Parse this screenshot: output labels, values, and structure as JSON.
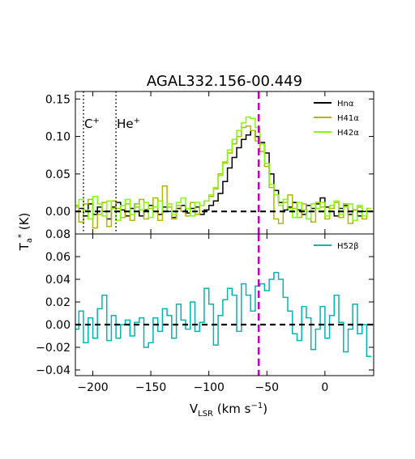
{
  "chart_data": {
    "type": "line",
    "title": "AGAL332.156-00.449",
    "xlim": [
      -215,
      42
    ],
    "xticks": [
      -200,
      -150,
      -100,
      -50,
      0
    ],
    "xlabel": {
      "main": "V",
      "sub": "LSR",
      "rest": " (km s",
      "sup": "−1",
      "end": ")"
    },
    "ylabel": {
      "main": "T",
      "sub": "a",
      "sup": "*",
      "rest": " (K)"
    },
    "vline": {
      "x": -57,
      "color": "#bf00bf"
    },
    "hline": {
      "y": 0.0
    },
    "panels": [
      {
        "ylim": [
          -0.03,
          0.16
        ],
        "yticks": [
          "0.15",
          "0.10",
          "0.05",
          "0.00"
        ],
        "ytick_values": [
          0.15,
          0.1,
          0.05,
          0.0
        ],
        "legend_position": "top-right",
        "annotations": [
          {
            "x": -208,
            "label": "C",
            "sup": "+"
          },
          {
            "x": -180,
            "label": "He",
            "sup": "+"
          }
        ],
        "series": [
          {
            "name": "Hnα",
            "color": "#000000",
            "x": [
              -214,
              -210,
              -206,
              -202,
              -198,
              -194,
              -190,
              -186,
              -182,
              -178,
              -174,
              -170,
              -166,
              -162,
              -158,
              -154,
              -150,
              -146,
              -142,
              -138,
              -134,
              -130,
              -126,
              -122,
              -118,
              -114,
              -110,
              -106,
              -102,
              -98,
              -94,
              -90,
              -86,
              -82,
              -78,
              -74,
              -70,
              -66,
              -62,
              -58,
              -54,
              -50,
              -46,
              -42,
              -38,
              -34,
              -30,
              -26,
              -22,
              -18,
              -14,
              -10,
              -6,
              -2,
              2,
              6,
              10,
              14,
              18,
              22,
              26,
              30,
              34,
              38
            ],
            "y": [
              0.0,
              0.004,
              -0.006,
              0.01,
              -0.004,
              0.006,
              0.0,
              -0.01,
              0.006,
              0.012,
              0.002,
              -0.006,
              0.004,
              0.01,
              -0.006,
              0.002,
              0.008,
              0.0,
              -0.004,
              0.006,
              0.0,
              -0.008,
              0.004,
              0.008,
              -0.002,
              0.004,
              0.006,
              -0.004,
              0.002,
              0.008,
              0.014,
              0.024,
              0.04,
              0.058,
              0.072,
              0.085,
              0.096,
              0.102,
              0.108,
              0.1,
              0.092,
              0.078,
              0.05,
              0.028,
              0.012,
              0.002,
              0.006,
              0.012,
              0.002,
              -0.004,
              0.008,
              0.004,
              0.01,
              0.018,
              0.006,
              0.0,
              -0.006,
              0.004,
              0.008,
              -0.004,
              0.002,
              -0.006,
              0.0,
              0.0
            ]
          },
          {
            "name": "H41α",
            "color": "#b5b500",
            "x": [
              -214,
              -210,
              -206,
              -202,
              -198,
              -194,
              -190,
              -186,
              -182,
              -178,
              -174,
              -170,
              -166,
              -162,
              -158,
              -154,
              -150,
              -146,
              -142,
              -138,
              -134,
              -130,
              -126,
              -122,
              -118,
              -114,
              -110,
              -106,
              -102,
              -98,
              -94,
              -90,
              -86,
              -82,
              -78,
              -74,
              -70,
              -66,
              -62,
              -58,
              -54,
              -50,
              -46,
              -42,
              -38,
              -34,
              -30,
              -26,
              -22,
              -18,
              -14,
              -10,
              -6,
              -2,
              2,
              6,
              10,
              14,
              18,
              22,
              26,
              30,
              34,
              38
            ],
            "y": [
              0.008,
              -0.014,
              0.01,
              0.016,
              -0.022,
              -0.004,
              0.012,
              -0.02,
              0.014,
              0.004,
              -0.008,
              0.01,
              -0.012,
              0.006,
              0.016,
              -0.01,
              0.004,
              0.018,
              -0.012,
              0.034,
              0.006,
              -0.01,
              0.008,
              0.0,
              -0.006,
              0.012,
              -0.004,
              0.008,
              0.014,
              0.02,
              0.03,
              0.05,
              0.066,
              0.078,
              0.09,
              0.1,
              0.112,
              0.114,
              0.108,
              0.094,
              0.08,
              0.06,
              0.032,
              -0.01,
              -0.016,
              0.012,
              0.022,
              0.004,
              -0.008,
              0.01,
              0.0,
              -0.014,
              0.012,
              0.006,
              -0.01,
              0.004,
              0.012,
              -0.008,
              0.01,
              -0.016,
              0.002,
              0.006,
              -0.01,
              0.0
            ]
          },
          {
            "name": "H42α",
            "color": "#7fff00",
            "x": [
              -214,
              -210,
              -206,
              -202,
              -198,
              -194,
              -190,
              -186,
              -182,
              -178,
              -174,
              -170,
              -166,
              -162,
              -158,
              -154,
              -150,
              -146,
              -142,
              -138,
              -134,
              -130,
              -126,
              -122,
              -118,
              -114,
              -110,
              -106,
              -102,
              -98,
              -94,
              -90,
              -86,
              -82,
              -78,
              -74,
              -70,
              -66,
              -62,
              -58,
              -54,
              -50,
              -46,
              -42,
              -38,
              -34,
              -30,
              -26,
              -22,
              -18,
              -14,
              -10,
              -6,
              -2,
              2,
              6,
              10,
              14,
              18,
              22,
              26,
              30,
              34,
              38
            ],
            "y": [
              0.006,
              0.016,
              0.002,
              -0.01,
              0.02,
              0.01,
              -0.006,
              0.014,
              0.004,
              -0.012,
              0.008,
              0.016,
              -0.004,
              0.01,
              0.002,
              0.012,
              -0.008,
              0.006,
              0.014,
              0.0,
              0.01,
              -0.004,
              0.012,
              0.018,
              0.004,
              -0.006,
              0.012,
              0.008,
              0.014,
              0.022,
              0.032,
              0.048,
              0.064,
              0.082,
              0.096,
              0.108,
              0.118,
              0.126,
              0.124,
              0.112,
              0.09,
              0.064,
              0.036,
              0.022,
              0.008,
              0.016,
              0.004,
              -0.008,
              0.012,
              0.002,
              -0.01,
              0.01,
              0.004,
              0.012,
              -0.006,
              0.008,
              0.014,
              -0.004,
              0.006,
              0.01,
              -0.012,
              0.008,
              -0.006,
              0.004
            ]
          }
        ]
      },
      {
        "ylim": [
          -0.045,
          0.08
        ],
        "yticks": [
          "0.08",
          "0.06",
          "0.04",
          "0.02",
          "0.00",
          "−0.02",
          "−0.04"
        ],
        "ytick_values": [
          0.08,
          0.06,
          0.04,
          0.02,
          0.0,
          -0.02,
          -0.04
        ],
        "legend_position": "top-right",
        "series": [
          {
            "name": "H52β",
            "color": "#00b5b5",
            "x": [
              -214,
              -210,
              -206,
              -202,
              -198,
              -194,
              -190,
              -186,
              -182,
              -178,
              -174,
              -170,
              -166,
              -162,
              -158,
              -154,
              -150,
              -146,
              -142,
              -138,
              -134,
              -130,
              -126,
              -122,
              -118,
              -114,
              -110,
              -106,
              -102,
              -98,
              -94,
              -90,
              -86,
              -82,
              -78,
              -74,
              -70,
              -66,
              -62,
              -58,
              -54,
              -50,
              -46,
              -42,
              -38,
              -34,
              -30,
              -26,
              -22,
              -18,
              -14,
              -10,
              -6,
              -2,
              2,
              6,
              10,
              14,
              18,
              22,
              26,
              30,
              34,
              38
            ],
            "y": [
              -0.004,
              0.012,
              -0.016,
              0.006,
              -0.012,
              0.014,
              0.026,
              -0.014,
              0.008,
              -0.012,
              0.0,
              0.004,
              -0.01,
              0.002,
              0.006,
              -0.02,
              -0.016,
              0.006,
              -0.006,
              0.014,
              0.008,
              -0.012,
              0.018,
              0.004,
              -0.004,
              0.02,
              -0.006,
              0.002,
              0.032,
              0.018,
              -0.018,
              0.008,
              0.022,
              0.032,
              0.026,
              -0.006,
              0.036,
              0.026,
              0.012,
              0.034,
              0.036,
              0.03,
              0.04,
              0.046,
              0.04,
              0.024,
              0.012,
              -0.008,
              -0.014,
              0.016,
              0.006,
              -0.022,
              -0.004,
              0.016,
              -0.012,
              0.008,
              0.026,
              0.002,
              -0.024,
              -0.004,
              0.018,
              -0.008,
              0.0,
              -0.028
            ]
          }
        ]
      }
    ]
  }
}
